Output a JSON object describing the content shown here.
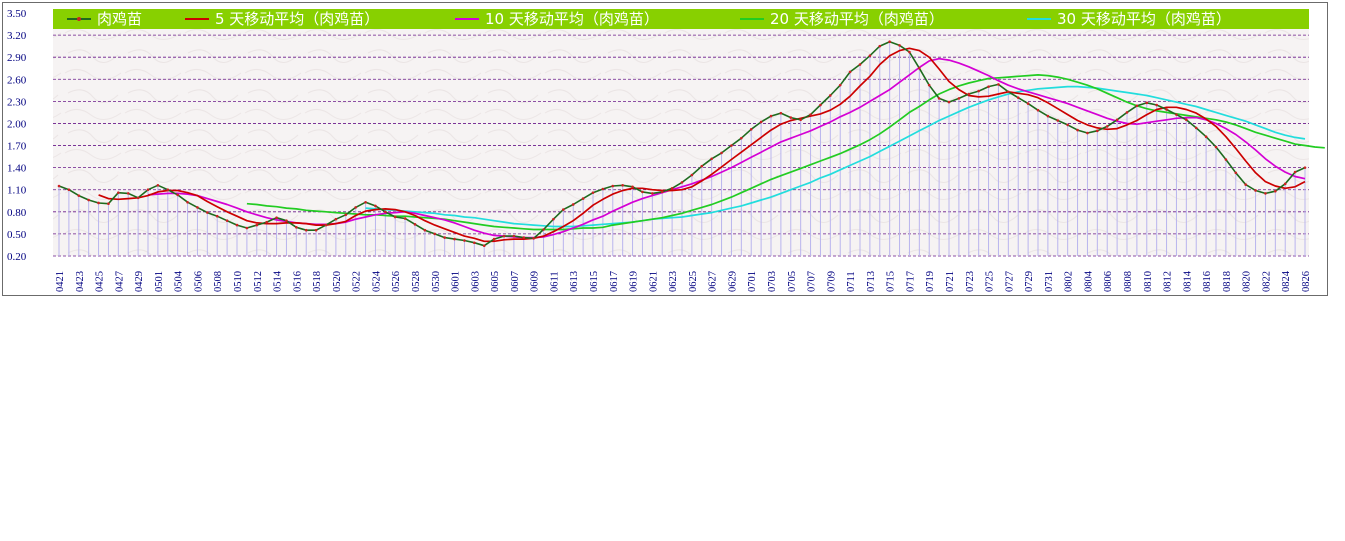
{
  "chart_data": {
    "type": "line",
    "title": "",
    "xlabel": "",
    "ylabel": "",
    "ylim": [
      0.2,
      3.5
    ],
    "yticks": [
      "0.20",
      "0.50",
      "0.80",
      "1.10",
      "1.40",
      "1.70",
      "2.00",
      "2.30",
      "2.60",
      "2.90",
      "3.20",
      "3.50"
    ],
    "grid": true,
    "legend": "top",
    "x_labels_shown": [
      "0421",
      "0423",
      "0425",
      "0427",
      "0429",
      "0501",
      "0504",
      "0506",
      "0508",
      "0510",
      "0512",
      "0514",
      "0516",
      "0518",
      "0520",
      "0522",
      "0524",
      "0526",
      "0528",
      "0530",
      "0601",
      "0603",
      "0605",
      "0607",
      "0609",
      "0611",
      "0613",
      "0615",
      "0617",
      "0619",
      "0621",
      "0623",
      "0625",
      "0627",
      "0629",
      "0701",
      "0703",
      "0705",
      "0707",
      "0709",
      "0711",
      "0713",
      "0715",
      "0717",
      "0719",
      "0721",
      "0723",
      "0725",
      "0727",
      "0729",
      "0731",
      "0802",
      "0804",
      "0806",
      "0808",
      "0810",
      "0812",
      "0814",
      "0816",
      "0818",
      "0820",
      "0822",
      "0824",
      "0826"
    ],
    "series": [
      {
        "name": "肉鸡苗",
        "color": "#1e6b1e",
        "marker": "#cc2222",
        "values": [
          1.15,
          1.1,
          1.02,
          0.96,
          0.92,
          0.91,
          1.06,
          1.05,
          0.99,
          1.1,
          1.16,
          1.1,
          1.03,
          0.93,
          0.86,
          0.79,
          0.74,
          0.68,
          0.62,
          0.58,
          0.62,
          0.66,
          0.72,
          0.68,
          0.59,
          0.55,
          0.55,
          0.62,
          0.7,
          0.76,
          0.86,
          0.93,
          0.88,
          0.8,
          0.73,
          0.71,
          0.63,
          0.55,
          0.5,
          0.45,
          0.43,
          0.41,
          0.38,
          0.34,
          0.43,
          0.47,
          0.47,
          0.45,
          0.44,
          0.56,
          0.7,
          0.83,
          0.9,
          0.98,
          1.06,
          1.11,
          1.15,
          1.16,
          1.14,
          1.07,
          1.05,
          1.07,
          1.12,
          1.2,
          1.3,
          1.42,
          1.52,
          1.6,
          1.7,
          1.8,
          1.92,
          2.02,
          2.1,
          2.14,
          2.08,
          2.05,
          2.12,
          2.25,
          2.38,
          2.52,
          2.7,
          2.8,
          2.92,
          3.05,
          3.11,
          3.06,
          2.97,
          2.75,
          2.52,
          2.34,
          2.29,
          2.34,
          2.4,
          2.44,
          2.5,
          2.53,
          2.43,
          2.35,
          2.27,
          2.18,
          2.1,
          2.04,
          1.98,
          1.91,
          1.87,
          1.9,
          1.96,
          2.05,
          2.15,
          2.24,
          2.28,
          2.25,
          2.19,
          2.12,
          2.05,
          1.94,
          1.82,
          1.68,
          1.51,
          1.33,
          1.17,
          1.09,
          1.05,
          1.08,
          1.18,
          1.34,
          1.4
        ]
      },
      {
        "name": "5 天移动平均（肉鸡苗）",
        "color": "#cc0000",
        "values": [
          null,
          null,
          null,
          null,
          1.03,
          0.98,
          0.97,
          0.98,
          0.99,
          1.02,
          1.07,
          1.09,
          1.09,
          1.06,
          1.02,
          0.94,
          0.87,
          0.8,
          0.74,
          0.68,
          0.65,
          0.64,
          0.64,
          0.65,
          0.65,
          0.64,
          0.62,
          0.62,
          0.64,
          0.67,
          0.75,
          0.81,
          0.83,
          0.84,
          0.83,
          0.8,
          0.75,
          0.68,
          0.62,
          0.57,
          0.52,
          0.47,
          0.44,
          0.4,
          0.4,
          0.42,
          0.43,
          0.43,
          0.44,
          0.47,
          0.53,
          0.6,
          0.68,
          0.78,
          0.89,
          0.97,
          1.04,
          1.09,
          1.12,
          1.12,
          1.1,
          1.09,
          1.09,
          1.1,
          1.14,
          1.22,
          1.31,
          1.41,
          1.51,
          1.61,
          1.71,
          1.81,
          1.91,
          1.99,
          2.04,
          2.07,
          2.1,
          2.13,
          2.18,
          2.26,
          2.37,
          2.51,
          2.64,
          2.8,
          2.92,
          2.99,
          3.02,
          2.99,
          2.9,
          2.74,
          2.57,
          2.46,
          2.38,
          2.36,
          2.37,
          2.4,
          2.43,
          2.41,
          2.39,
          2.35,
          2.28,
          2.2,
          2.12,
          2.04,
          1.98,
          1.94,
          1.92,
          1.93,
          1.98,
          2.04,
          2.12,
          2.19,
          2.22,
          2.22,
          2.19,
          2.14,
          2.06,
          1.96,
          1.82,
          1.66,
          1.49,
          1.33,
          1.21,
          1.15,
          1.12,
          1.14,
          1.21
        ]
      },
      {
        "name": "10 天移动平均（肉鸡苗）",
        "color": "#d400d4",
        "values": [
          null,
          null,
          null,
          null,
          null,
          null,
          null,
          null,
          null,
          1.03,
          1.04,
          1.05,
          1.05,
          1.04,
          1.02,
          0.98,
          0.94,
          0.9,
          0.85,
          0.8,
          0.76,
          0.72,
          0.69,
          0.67,
          0.65,
          0.64,
          0.63,
          0.63,
          0.64,
          0.66,
          0.7,
          0.73,
          0.76,
          0.78,
          0.79,
          0.8,
          0.78,
          0.75,
          0.72,
          0.69,
          0.65,
          0.6,
          0.55,
          0.51,
          0.48,
          0.47,
          0.46,
          0.45,
          0.45,
          0.46,
          0.49,
          0.53,
          0.58,
          0.63,
          0.69,
          0.74,
          0.81,
          0.87,
          0.93,
          0.98,
          1.02,
          1.06,
          1.1,
          1.14,
          1.18,
          1.23,
          1.28,
          1.34,
          1.4,
          1.47,
          1.54,
          1.61,
          1.68,
          1.75,
          1.8,
          1.85,
          1.9,
          1.96,
          2.02,
          2.09,
          2.15,
          2.22,
          2.3,
          2.38,
          2.46,
          2.56,
          2.66,
          2.76,
          2.85,
          2.88,
          2.86,
          2.82,
          2.77,
          2.71,
          2.65,
          2.58,
          2.52,
          2.47,
          2.43,
          2.39,
          2.35,
          2.31,
          2.27,
          2.22,
          2.17,
          2.12,
          2.07,
          2.03,
          2.0,
          1.99,
          2.01,
          2.03,
          2.05,
          2.07,
          2.08,
          2.08,
          2.05,
          2.0,
          1.93,
          1.85,
          1.75,
          1.64,
          1.52,
          1.42,
          1.34,
          1.28,
          1.25
        ]
      },
      {
        "name": "20 天移动平均（肉鸡苗）",
        "color": "#22cc22",
        "values": [
          null,
          null,
          null,
          null,
          null,
          null,
          null,
          null,
          null,
          null,
          null,
          null,
          null,
          null,
          null,
          null,
          null,
          null,
          null,
          0.91,
          0.9,
          0.88,
          0.87,
          0.85,
          0.84,
          0.82,
          0.81,
          0.8,
          0.79,
          0.78,
          0.77,
          0.76,
          0.76,
          0.75,
          0.74,
          0.74,
          0.73,
          0.72,
          0.71,
          0.7,
          0.68,
          0.66,
          0.64,
          0.62,
          0.6,
          0.59,
          0.58,
          0.57,
          0.56,
          0.56,
          0.56,
          0.56,
          0.57,
          0.58,
          0.58,
          0.59,
          0.62,
          0.64,
          0.66,
          0.68,
          0.7,
          0.72,
          0.75,
          0.78,
          0.82,
          0.86,
          0.9,
          0.95,
          1.0,
          1.06,
          1.12,
          1.18,
          1.24,
          1.29,
          1.34,
          1.39,
          1.44,
          1.49,
          1.54,
          1.59,
          1.65,
          1.71,
          1.78,
          1.86,
          1.95,
          2.05,
          2.15,
          2.23,
          2.32,
          2.4,
          2.46,
          2.51,
          2.55,
          2.58,
          2.61,
          2.62,
          2.63,
          2.64,
          2.65,
          2.66,
          2.65,
          2.63,
          2.6,
          2.56,
          2.52,
          2.47,
          2.41,
          2.35,
          2.29,
          2.24,
          2.2,
          2.17,
          2.15,
          2.13,
          2.11,
          2.09,
          2.07,
          2.05,
          2.02,
          1.98,
          1.93,
          1.88,
          1.84,
          1.8,
          1.76,
          1.72,
          1.7,
          1.68,
          1.67
        ]
      },
      {
        "name": "30 天移动平均（肉鸡苗）",
        "color": "#22dddd",
        "values": [
          null,
          null,
          null,
          null,
          null,
          null,
          null,
          null,
          null,
          null,
          null,
          null,
          null,
          null,
          null,
          null,
          null,
          null,
          null,
          null,
          null,
          null,
          null,
          null,
          null,
          null,
          null,
          null,
          null,
          null,
          null,
          0.85,
          0.84,
          0.83,
          0.82,
          0.81,
          0.8,
          0.79,
          0.78,
          0.76,
          0.75,
          0.73,
          0.72,
          0.7,
          0.68,
          0.66,
          0.64,
          0.63,
          0.62,
          0.61,
          0.6,
          0.6,
          0.6,
          0.61,
          0.62,
          0.63,
          0.64,
          0.65,
          0.66,
          0.68,
          0.7,
          0.71,
          0.72,
          0.73,
          0.75,
          0.77,
          0.79,
          0.82,
          0.85,
          0.88,
          0.92,
          0.96,
          1.0,
          1.05,
          1.1,
          1.15,
          1.2,
          1.26,
          1.31,
          1.37,
          1.43,
          1.49,
          1.55,
          1.62,
          1.69,
          1.76,
          1.83,
          1.9,
          1.97,
          2.04,
          2.1,
          2.16,
          2.22,
          2.27,
          2.32,
          2.36,
          2.4,
          2.43,
          2.45,
          2.47,
          2.48,
          2.49,
          2.5,
          2.5,
          2.49,
          2.48,
          2.46,
          2.44,
          2.42,
          2.4,
          2.38,
          2.35,
          2.32,
          2.29,
          2.26,
          2.23,
          2.19,
          2.15,
          2.11,
          2.07,
          2.03,
          1.98,
          1.93,
          1.88,
          1.84,
          1.81,
          1.79
        ]
      }
    ],
    "bar_series": {
      "color": "#b9b4ee"
    }
  }
}
